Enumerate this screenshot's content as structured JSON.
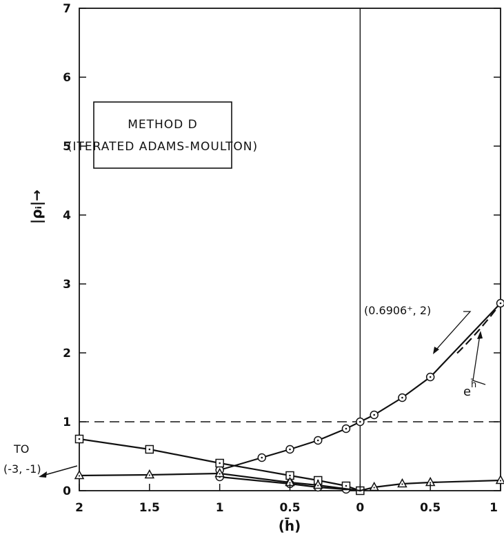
{
  "chart_data": {
    "type": "line",
    "title": "",
    "box_title": "METHOD D",
    "box_subtitle": "(ITERATED ADAMS-MOULTON)",
    "xlabel": "(h̄)",
    "ylabel": "|ρᵢ|→",
    "y_ticks": [
      "0",
      "1",
      "2",
      "3",
      "4",
      "5",
      "6",
      "7"
    ],
    "x_ticks_left": [
      "2",
      "1.5",
      "1",
      "0.5",
      "0"
    ],
    "x_ticks_right": [
      "0.5",
      "1"
    ],
    "ylim": [
      0,
      7
    ],
    "x_axis_note": "left half shows h̄ from -2 to 0 (labeled by magnitude); right half h̄ from 0 to 1",
    "xlim": [
      -2,
      1
    ],
    "grid": false,
    "series": [
      {
        "marker": "circle",
        "points": [
          [
            -1.0,
            0.2
          ],
          [
            -0.5,
            0.1
          ],
          [
            -0.3,
            0.05
          ],
          [
            -0.1,
            0.02
          ]
        ]
      },
      {
        "marker": "circle",
        "points": [
          [
            -1.0,
            0.3
          ],
          [
            -0.7,
            0.48
          ],
          [
            -0.5,
            0.6
          ],
          [
            -0.3,
            0.73
          ],
          [
            -0.1,
            0.9
          ],
          [
            0.0,
            1.0
          ],
          [
            0.1,
            1.1
          ],
          [
            0.3,
            1.35
          ],
          [
            0.5,
            1.65
          ],
          [
            1.0,
            2.72
          ]
        ]
      },
      {
        "marker": "square",
        "points": [
          [
            -2.0,
            0.75
          ],
          [
            -1.5,
            0.6
          ],
          [
            -1.0,
            0.4
          ],
          [
            -0.5,
            0.22
          ],
          [
            -0.3,
            0.15
          ],
          [
            -0.1,
            0.07
          ],
          [
            0.0,
            0.0
          ]
        ]
      },
      {
        "marker": "triangle",
        "points": [
          [
            -2.0,
            0.22
          ],
          [
            -1.5,
            0.23
          ],
          [
            -1.0,
            0.25
          ],
          [
            -0.5,
            0.12
          ],
          [
            -0.3,
            0.08
          ],
          [
            0.0,
            0.0
          ],
          [
            0.1,
            0.05
          ],
          [
            0.3,
            0.1
          ],
          [
            0.5,
            0.12
          ],
          [
            1.0,
            0.15
          ]
        ]
      }
    ],
    "reference_lines": [
      {
        "style": "dashed",
        "y": 1
      },
      {
        "style": "solid",
        "x": 0
      }
    ],
    "dashed_curve_label": "e",
    "dashed_curve_superscript": "h̄",
    "annotation_point": "(0.6906⁺, 2)",
    "annotation_point_value": [
      0.6906,
      2
    ],
    "arrow_text_line1": "TO",
    "arrow_text_line2": "(-3, -1)"
  }
}
